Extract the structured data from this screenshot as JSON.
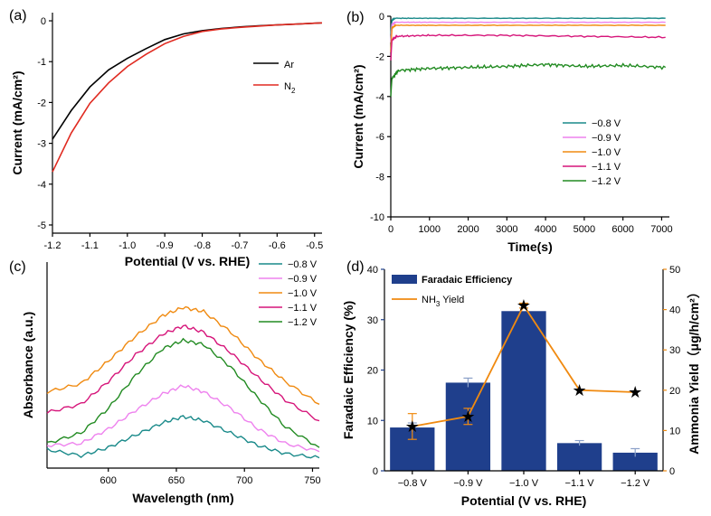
{
  "chart_data": [
    {
      "panel": "(a)",
      "type": "line",
      "xlabel": "Potential (V vs. RHE)",
      "ylabel": "Current (mA/cm²)",
      "xlim": [
        -1.2,
        -0.48
      ],
      "ylim": [
        -5.2,
        0.2
      ],
      "xticks": [
        "-1.2",
        "-1.1",
        "-1.0",
        "-0.9",
        "-0.8",
        "-0.7",
        "-0.6",
        "-0.5"
      ],
      "xtick_values": [
        -1.2,
        -1.1,
        -1.0,
        -0.9,
        -0.8,
        -0.7,
        -0.6,
        -0.5
      ],
      "yticks": [
        "0",
        "-1",
        "-2",
        "-3",
        "-4",
        "-5"
      ],
      "ytick_values": [
        0,
        -1,
        -2,
        -3,
        -4,
        -5
      ],
      "legend": [
        {
          "label": "Ar",
          "sub": "",
          "color": "#000000"
        },
        {
          "label": "N",
          "sub": "2",
          "color": "#e02a20"
        }
      ],
      "series": [
        {
          "name": "Ar",
          "color": "#000000",
          "x": [
            -1.2,
            -1.15,
            -1.1,
            -1.05,
            -1.0,
            -0.95,
            -0.9,
            -0.85,
            -0.8,
            -0.75,
            -0.7,
            -0.65,
            -0.6,
            -0.55,
            -0.5,
            -0.48
          ],
          "y": [
            -2.9,
            -2.2,
            -1.62,
            -1.2,
            -0.92,
            -0.68,
            -0.46,
            -0.32,
            -0.24,
            -0.19,
            -0.15,
            -0.12,
            -0.1,
            -0.08,
            -0.06,
            -0.05
          ]
        },
        {
          "name": "N2",
          "color": "#e02a20",
          "x": [
            -1.2,
            -1.15,
            -1.1,
            -1.05,
            -1.0,
            -0.95,
            -0.9,
            -0.85,
            -0.8,
            -0.75,
            -0.7,
            -0.65,
            -0.6,
            -0.55,
            -0.5,
            -0.48
          ],
          "y": [
            -3.7,
            -2.75,
            -2.02,
            -1.52,
            -1.12,
            -0.82,
            -0.56,
            -0.38,
            -0.26,
            -0.2,
            -0.16,
            -0.13,
            -0.1,
            -0.08,
            -0.06,
            -0.05
          ]
        }
      ]
    },
    {
      "panel": "(b)",
      "type": "line",
      "xlabel": "Time(s)",
      "ylabel": "Current (mA/cm²)",
      "xlim": [
        0,
        7200
      ],
      "ylim": [
        -10,
        0
      ],
      "xticks": [
        "0",
        "1000",
        "2000",
        "3000",
        "4000",
        "5000",
        "6000",
        "7000"
      ],
      "xtick_values": [
        0,
        1000,
        2000,
        3000,
        4000,
        5000,
        6000,
        7000
      ],
      "yticks": [
        "0",
        "-2",
        "-4",
        "-6",
        "-8",
        "-10"
      ],
      "ytick_values": [
        0,
        -2,
        -4,
        -6,
        -8,
        -10
      ],
      "legend": [
        {
          "label": "−0.8 V",
          "color": "#1a8a8a"
        },
        {
          "label": "−0.9 V",
          "color": "#ee82ee"
        },
        {
          "label": "−1.0 V",
          "color": "#f08a10"
        },
        {
          "label": "−1.1 V",
          "color": "#d6157a"
        },
        {
          "label": "−1.2 V",
          "color": "#228b22"
        }
      ],
      "series": [
        {
          "name": "−0.8 V",
          "color": "#1a8a8a",
          "x": [
            0,
            30,
            120,
            1000,
            3000,
            5000,
            7100
          ],
          "y": [
            -0.9,
            -0.2,
            -0.1,
            -0.1,
            -0.1,
            -0.1,
            -0.1
          ]
        },
        {
          "name": "−0.9 V",
          "color": "#ee82ee",
          "x": [
            0,
            30,
            120,
            1000,
            3000,
            5000,
            7100
          ],
          "y": [
            -1.3,
            -0.4,
            -0.3,
            -0.3,
            -0.3,
            -0.3,
            -0.3
          ]
        },
        {
          "name": "−1.0 V",
          "color": "#f08a10",
          "x": [
            0,
            30,
            120,
            1000,
            3000,
            5000,
            7100
          ],
          "y": [
            -1.8,
            -0.6,
            -0.45,
            -0.45,
            -0.45,
            -0.45,
            -0.45
          ]
        },
        {
          "name": "−1.1 V",
          "color": "#d6157a",
          "x": [
            0,
            30,
            150,
            1000,
            3000,
            5000,
            7100
          ],
          "y": [
            -2.2,
            -1.2,
            -1.0,
            -0.95,
            -0.95,
            -1.0,
            -1.05
          ]
        },
        {
          "name": "−1.2 V",
          "color": "#228b22",
          "x": [
            0,
            30,
            200,
            1000,
            2000,
            3000,
            4000,
            5000,
            6000,
            7100
          ],
          "y": [
            -4.0,
            -3.1,
            -2.7,
            -2.6,
            -2.55,
            -2.5,
            -2.4,
            -2.5,
            -2.45,
            -2.55
          ]
        }
      ]
    },
    {
      "panel": "(c)",
      "type": "line",
      "xlabel": "Wavelength (nm)",
      "ylabel": "Absorbance (a.u.)",
      "xlim": [
        555,
        755
      ],
      "ylim": [
        0,
        1
      ],
      "xticks": [
        "600",
        "650",
        "700",
        "750"
      ],
      "xtick_values": [
        600,
        650,
        700,
        750
      ],
      "legend": [
        {
          "label": "−0.8 V",
          "color": "#1a8a8a"
        },
        {
          "label": "−0.9 V",
          "color": "#ee82ee"
        },
        {
          "label": "−1.0 V",
          "color": "#f08a10"
        },
        {
          "label": "−1.1 V",
          "color": "#d6157a"
        },
        {
          "label": "−1.2 V",
          "color": "#228b22"
        }
      ],
      "series": [
        {
          "name": "−0.8 V",
          "color": "#1a8a8a",
          "x": [
            555,
            580,
            600,
            620,
            640,
            655,
            670,
            690,
            710,
            730,
            755
          ],
          "y": [
            0.09,
            0.06,
            0.1,
            0.16,
            0.22,
            0.25,
            0.23,
            0.17,
            0.11,
            0.07,
            0.05
          ]
        },
        {
          "name": "−0.9 V",
          "color": "#ee82ee",
          "x": [
            555,
            580,
            600,
            620,
            640,
            655,
            670,
            690,
            710,
            730,
            755
          ],
          "y": [
            0.11,
            0.12,
            0.19,
            0.28,
            0.36,
            0.4,
            0.37,
            0.29,
            0.19,
            0.12,
            0.08
          ]
        },
        {
          "name": "−1.0 V",
          "color": "#f08a10",
          "x": [
            555,
            580,
            600,
            620,
            640,
            655,
            670,
            690,
            710,
            730,
            755
          ],
          "y": [
            0.37,
            0.41,
            0.52,
            0.64,
            0.74,
            0.78,
            0.76,
            0.66,
            0.53,
            0.42,
            0.31
          ]
        },
        {
          "name": "−1.1 V",
          "color": "#d6157a",
          "x": [
            555,
            580,
            600,
            620,
            640,
            655,
            670,
            690,
            710,
            730,
            755
          ],
          "y": [
            0.27,
            0.31,
            0.42,
            0.55,
            0.65,
            0.69,
            0.66,
            0.56,
            0.44,
            0.33,
            0.23
          ]
        },
        {
          "name": "−1.2 V",
          "color": "#228b22",
          "x": [
            555,
            580,
            600,
            620,
            640,
            655,
            670,
            690,
            710,
            730,
            755
          ],
          "y": [
            0.12,
            0.17,
            0.29,
            0.45,
            0.58,
            0.62,
            0.6,
            0.49,
            0.34,
            0.2,
            0.1
          ]
        }
      ]
    },
    {
      "panel": "(d)",
      "type": "bar",
      "xlabel": "Potential (V vs. RHE)",
      "ylabel": "Faradaic Efficiency (%)",
      "y2label": "Ammonia Yield（μg/h/cm²）",
      "categories": [
        "−0.8 V",
        "−0.9 V",
        "−1.0 V",
        "−1.1 V",
        "−1.2 V"
      ],
      "ylim": [
        0,
        40
      ],
      "yticks": [
        "0",
        "10",
        "20",
        "30",
        "40"
      ],
      "ytick_values": [
        0,
        10,
        20,
        30,
        40
      ],
      "y2lim": [
        0,
        50
      ],
      "y2ticks": [
        "0",
        "10",
        "20",
        "30",
        "40",
        "50"
      ],
      "y2tick_values": [
        0,
        10,
        20,
        30,
        40,
        50
      ],
      "bar_color": "#1f3f8c",
      "line_color": "#f08a10",
      "series": [
        {
          "name": "Faradaic Efficiency",
          "axis": "left",
          "values": [
            8.6,
            17.5,
            31.7,
            5.5,
            3.6
          ],
          "errors": [
            0.9,
            0.9,
            0.0,
            0.5,
            0.8
          ]
        },
        {
          "name": "NH₃ Yield",
          "axis": "right",
          "values": [
            11.0,
            13.5,
            41.0,
            20.0,
            19.5
          ],
          "errors": [
            3.2,
            2.0,
            0.6,
            0.4,
            0.4
          ]
        }
      ],
      "legend": [
        {
          "label": "Faradaic Efficiency",
          "color": "#1f3f8c"
        },
        {
          "label": "NH",
          "sub": "3",
          "suffix": " Yield",
          "color": "#f08a10"
        }
      ]
    }
  ]
}
